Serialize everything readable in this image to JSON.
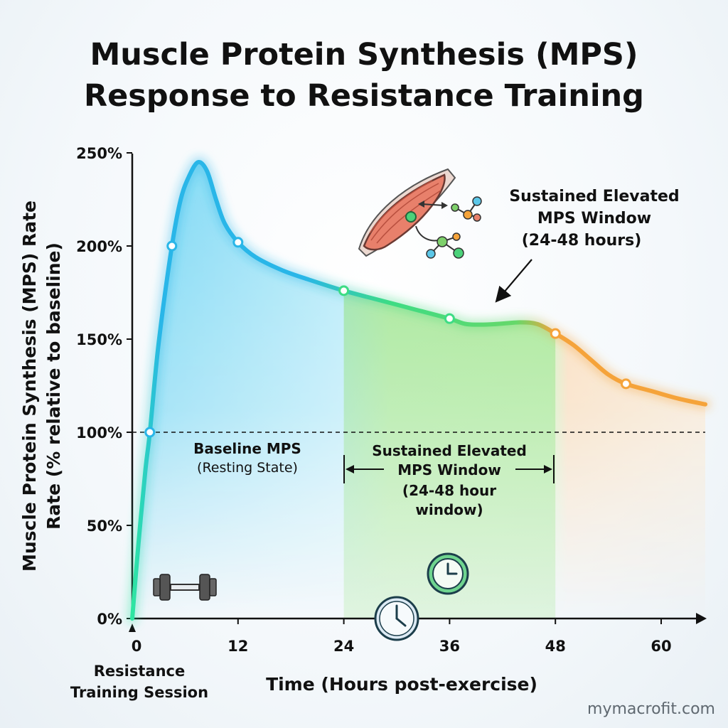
{
  "chart_data": {
    "type": "line",
    "title_line1": "Muscle Protein Synthesis (MPS)",
    "title_line2": "Response to Resistance Training",
    "ylabel_line1": "Muscle Protein Synthesis (MPS) Rate",
    "ylabel_line2": "Rate (% relative to baseline)",
    "xlabel": "Time (Hours post-exercise)",
    "xlim": [
      0,
      65
    ],
    "ylim": [
      0,
      250
    ],
    "x_ticks": [
      "0",
      "12",
      "24",
      "36",
      "48",
      "60"
    ],
    "x_tick_values": [
      0,
      12,
      24,
      36,
      48,
      60
    ],
    "y_ticks": [
      "0%",
      "50%",
      "100%",
      "150%",
      "200%",
      "250%"
    ],
    "y_tick_values": [
      0,
      50,
      100,
      150,
      200,
      250
    ],
    "baseline_value": 100,
    "series": [
      {
        "points": [
          [
            0,
            0
          ],
          [
            0.7,
            40
          ],
          [
            1.5,
            80
          ],
          [
            2,
            100
          ],
          [
            3,
            148
          ],
          [
            4.5,
            200
          ],
          [
            5.5,
            225
          ],
          [
            6.5,
            238
          ],
          [
            7.5,
            245
          ],
          [
            8.5,
            240
          ],
          [
            9.5,
            225
          ],
          [
            10.5,
            212
          ],
          [
            12,
            202
          ],
          [
            14,
            194
          ],
          [
            17,
            187
          ],
          [
            20,
            182
          ],
          [
            24,
            176
          ],
          [
            28,
            171
          ],
          [
            32,
            166
          ],
          [
            36,
            161
          ],
          [
            38,
            158
          ],
          [
            41,
            158
          ],
          [
            44,
            159
          ],
          [
            46,
            158
          ],
          [
            48,
            153
          ],
          [
            50,
            147
          ],
          [
            52,
            139
          ],
          [
            54,
            131
          ],
          [
            56,
            126
          ],
          [
            59,
            122
          ],
          [
            62,
            118
          ],
          [
            65,
            115
          ]
        ],
        "markers": [
          [
            2,
            100
          ],
          [
            4.5,
            200
          ],
          [
            12,
            202
          ],
          [
            24,
            176
          ],
          [
            36,
            161
          ],
          [
            48,
            153
          ],
          [
            56,
            126
          ]
        ]
      }
    ],
    "window_range": [
      24,
      48
    ],
    "annotations": {
      "baseline_line1": "Baseline MPS",
      "baseline_line2": "(Resting State)",
      "window_line1": "Sustained Elevated",
      "window_line2": "MPS Window",
      "window_line3": "(24-48 hour",
      "window_line4": "window)",
      "top_line1": "Sustained Elevated",
      "top_line2": "MPS Window",
      "top_line3": "(24-48 hours)",
      "session_line1": "Resistance",
      "session_line2": "Training Session"
    },
    "colors": {
      "early": "#29b6e8",
      "window": "#3ddc84",
      "late": "#f5a33a",
      "muscle": "#e8806b"
    }
  },
  "icons": {
    "muscle": "muscle-fiber-icon",
    "molecule": "amino-acid-molecule-icon",
    "dumbbell": "dumbbell-icon",
    "clock": "clock-icon",
    "timer": "timer-icon"
  },
  "watermark": "mymacrofit.com"
}
